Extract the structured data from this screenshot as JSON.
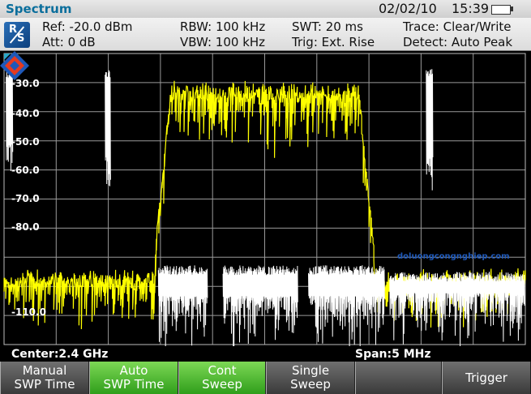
{
  "mode": {
    "title": "Spectrum"
  },
  "clock": {
    "date": "02/02/10",
    "time": "15:39"
  },
  "params": {
    "ref": "Ref:  -20.0 dBm",
    "att": "Att:  0 dB",
    "rbw": "RBW:   100 kHz",
    "vbw": "VBW:   100 kHz",
    "swt": "SWT:   20 ms",
    "trig": "Trig:   Ext. Rise",
    "trace": "Trace:   Clear/Write",
    "detect": "Detect:   Auto Peak"
  },
  "y_axis_labels": [
    "-30.0",
    "-40.0",
    "-50.0",
    "-60.0",
    "-70.0",
    "-80.0",
    "-110.0"
  ],
  "status": {
    "center": "Center:2.4 GHz",
    "span": "Span:5 MHz"
  },
  "softkeys": [
    {
      "line1": "Manual",
      "line2": "SWP Time",
      "active": false
    },
    {
      "line1": "Auto",
      "line2": "SWP Time",
      "active": true
    },
    {
      "line1": "Cont",
      "line2": "Sweep",
      "active": true
    },
    {
      "line1": "Single",
      "line2": "Sweep",
      "active": false
    },
    {
      "line1": "",
      "line2": "",
      "active": false
    },
    {
      "line1": "Trigger",
      "line2": "",
      "active": false
    }
  ],
  "watermark": {
    "text": "doluongcongnghiep.com"
  },
  "colors": {
    "trace_yellow": "#ffff00",
    "trace_white": "#ffffff",
    "softkey_active": "#3fae22",
    "mode_text": "#0a6e9c"
  },
  "chart_data": {
    "type": "line",
    "x_range": [
      -2.5,
      2.5
    ],
    "ylim": [
      -110,
      -20
    ],
    "grid": true,
    "series": [
      {
        "color": "#ffff00",
        "description": "",
        "x": [
          -2.5,
          -1.2,
          -1.05,
          -0.9,
          0,
          0.9,
          1.05,
          1.2,
          2.5
        ],
        "y": [
          -89,
          -88,
          -82,
          -32,
          -30,
          -32,
          -82,
          -88,
          -89
        ]
      },
      {
        "color": "#ffffff",
        "x": [
          -2.45,
          -1.6,
          -0.5,
          0.5,
          1.6,
          2.45
        ],
        "y": [
          -30,
          -30,
          -88,
          -88,
          -30,
          -92
        ]
      }
    ]
  }
}
